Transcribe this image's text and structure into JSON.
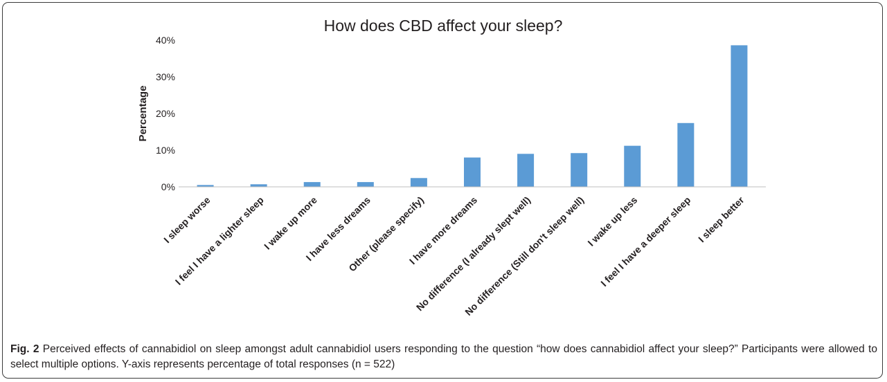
{
  "chart_data": {
    "type": "bar",
    "title": "How does CBD affect your sleep?",
    "xlabel": "",
    "ylabel": "Percentage",
    "ylim": [
      0,
      40
    ],
    "yticks": [
      "0%",
      "10%",
      "20%",
      "30%",
      "40%"
    ],
    "ytick_values": [
      0,
      10,
      20,
      30,
      40
    ],
    "grid": false,
    "bar_color": "#5b9bd5",
    "categories": [
      "I sleep worse",
      "I feel I have a lighter sleep",
      "I wake up more",
      "I have less dreams",
      "Other (please specify)",
      "I have more dreams",
      "No difference (I already slept well)",
      "No difference (Still don't sleep well)",
      "I wake up less",
      "I feel I have a deeper sleep",
      "I sleep better"
    ],
    "values": [
      0.5,
      0.7,
      1.3,
      1.3,
      2.4,
      8.0,
      9.0,
      9.2,
      11.2,
      17.4,
      38.6
    ]
  },
  "caption": {
    "label": "Fig. 2",
    "text": "Perceived effects of cannabidiol on sleep amongst adult cannabidiol users responding to the question “how does cannabidiol affect your sleep?” Participants were allowed to select multiple options. Y-axis represents percentage of total responses (n = 522)"
  }
}
